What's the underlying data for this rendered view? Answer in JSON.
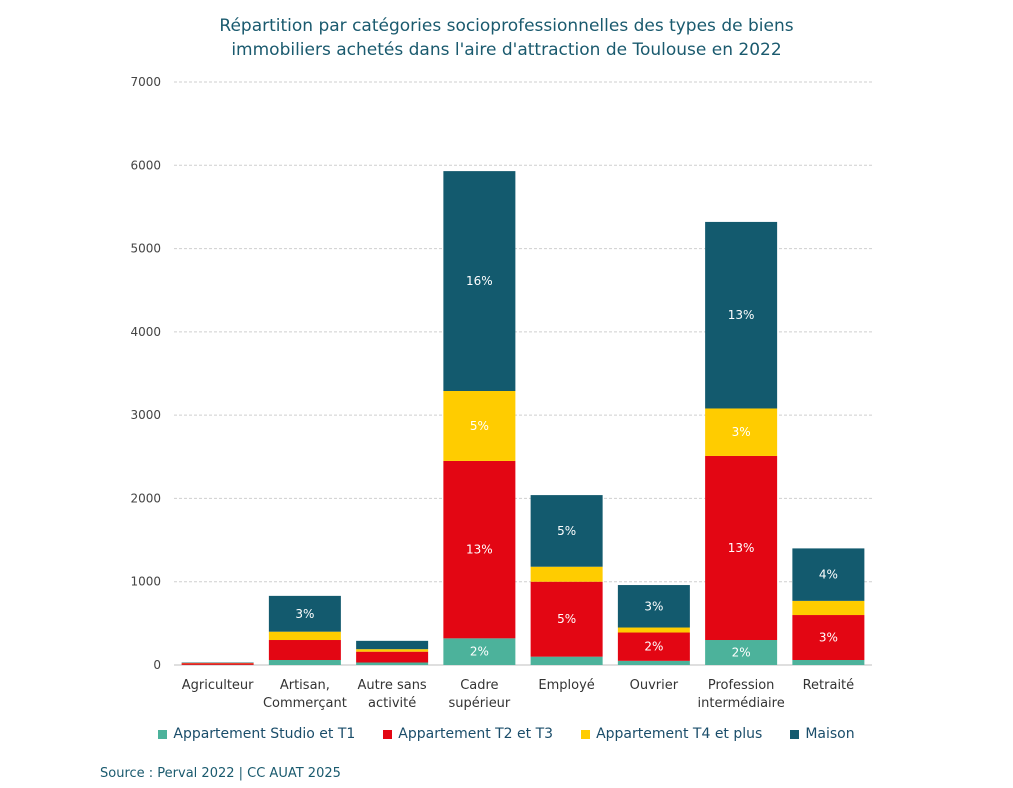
{
  "title_line1": "Répartition par catégories socioprofessionnelles des types de biens",
  "title_line2": "immobiliers achetés dans l'aire d'attraction de Toulouse en 2022",
  "source": "Source : Perval 2022 | CC AUAT 2025",
  "chart_data": {
    "type": "bar",
    "stacked": true,
    "title": "Répartition par catégories socioprofessionnelles des types de biens immobiliers achetés dans l'aire d'attraction de Toulouse en 2022",
    "xlabel": "",
    "ylabel": "",
    "ylim": [
      0,
      7000
    ],
    "yticks": [
      0,
      1000,
      2000,
      3000,
      4000,
      5000,
      6000,
      7000
    ],
    "grid": true,
    "legend_position": "bottom",
    "categories": [
      [
        "Agriculteur"
      ],
      [
        "Artisan,",
        "Commerçant"
      ],
      [
        "Autre sans",
        "activité"
      ],
      [
        "Cadre",
        "supérieur"
      ],
      [
        "Employé"
      ],
      [
        "Ouvrier"
      ],
      [
        "Profession",
        "intermédiaire"
      ],
      [
        "Retraité"
      ]
    ],
    "series": [
      {
        "name": "Appartement Studio et T1",
        "color": "#4cb29b",
        "values": [
          2,
          60,
          30,
          320,
          100,
          50,
          300,
          60
        ],
        "labels": [
          "",
          "",
          "",
          "2%",
          "",
          "",
          "2%",
          ""
        ]
      },
      {
        "name": "Appartement T2 et T3",
        "color": "#e30613",
        "values": [
          20,
          240,
          130,
          2130,
          900,
          340,
          2210,
          540
        ],
        "labels": [
          "",
          "",
          "",
          "13%",
          "5%",
          "2%",
          "13%",
          "3%"
        ]
      },
      {
        "name": "Appartement T4 et plus",
        "color": "#ffcc00",
        "values": [
          3,
          100,
          30,
          840,
          180,
          60,
          570,
          170
        ],
        "labels": [
          "",
          "",
          "",
          "5%",
          "",
          "",
          "3%",
          ""
        ]
      },
      {
        "name": "Maison",
        "color": "#135a6e",
        "values": [
          5,
          430,
          100,
          2640,
          860,
          510,
          2240,
          630
        ],
        "labels": [
          "",
          "3%",
          "",
          "16%",
          "5%",
          "3%",
          "13%",
          "4%"
        ]
      }
    ]
  }
}
